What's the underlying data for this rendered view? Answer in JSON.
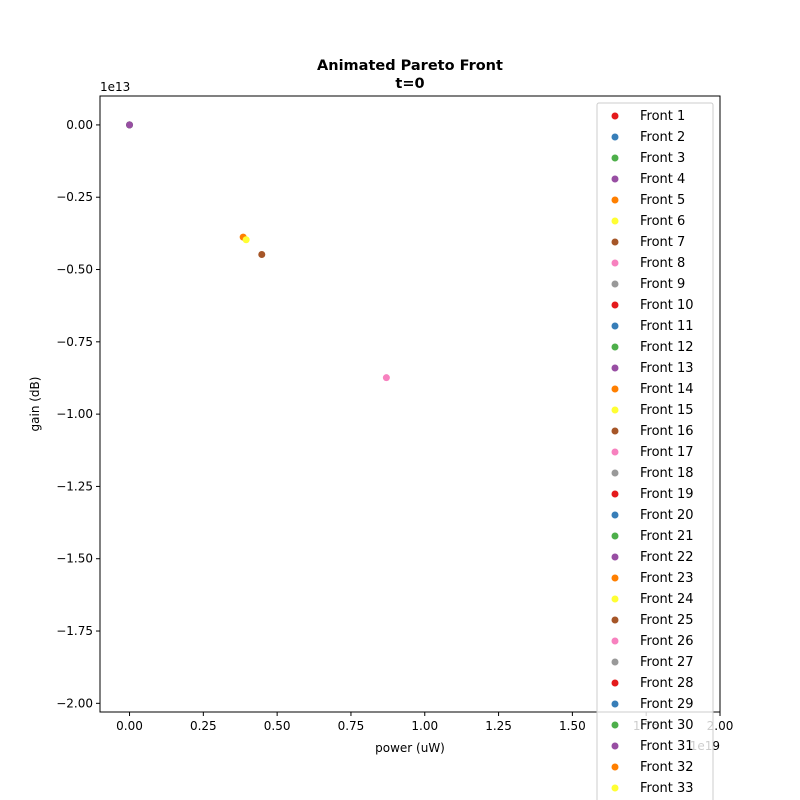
{
  "chart_data": {
    "type": "scatter",
    "title": "Animated Pareto Front",
    "subtitle": "t=0",
    "xlabel": "power (uW)",
    "ylabel": "gain (dB)",
    "x_offset_label": "1e19",
    "y_offset_label": "1e13",
    "xlim": [
      -0.1,
      2.0
    ],
    "ylim": [
      -2.03,
      0.1
    ],
    "x_ticks": [
      0.0,
      0.25,
      0.5,
      0.75,
      1.0,
      1.25,
      1.5,
      1.75,
      2.0
    ],
    "x_tick_labels": [
      "0.00",
      "0.25",
      "0.50",
      "0.75",
      "1.00",
      "1.25",
      "1.50",
      "1.75",
      "2.00"
    ],
    "y_ticks": [
      0.0,
      -0.25,
      -0.5,
      -0.75,
      -1.0,
      -1.25,
      -1.5,
      -1.75,
      -2.0
    ],
    "y_tick_labels": [
      "0.00",
      "−0.25",
      "−0.50",
      "−0.75",
      "−1.00",
      "−1.25",
      "−1.50",
      "−1.75",
      "−2.00"
    ],
    "grid": false,
    "legend_position": "top-right",
    "series": [
      {
        "name": "Front 1",
        "color": "#e41a1c",
        "points": [
          [
            0.0,
            0.0
          ]
        ]
      },
      {
        "name": "Front 2",
        "color": "#377eb8",
        "points": [
          [
            0.0,
            0.0
          ]
        ]
      },
      {
        "name": "Front 3",
        "color": "#4daf4a",
        "points": [
          [
            0.0,
            0.0
          ]
        ]
      },
      {
        "name": "Front 4",
        "color": "#984ea3",
        "points": [
          [
            0.0,
            0.0
          ]
        ]
      },
      {
        "name": "Front 5",
        "color": "#ff7f00",
        "points": [
          [
            0.385,
            -0.388
          ]
        ]
      },
      {
        "name": "Front 6",
        "color": "#ffff33",
        "points": [
          [
            0.395,
            -0.397
          ]
        ]
      },
      {
        "name": "Front 7",
        "color": "#a65628",
        "points": [
          [
            0.448,
            -0.448
          ]
        ]
      },
      {
        "name": "Front 8",
        "color": "#f781bf",
        "points": [
          [
            0.87,
            -0.874
          ]
        ]
      },
      {
        "name": "Front 9",
        "color": "#999999",
        "points": []
      },
      {
        "name": "Front 10",
        "color": "#e41a1c",
        "points": []
      },
      {
        "name": "Front 11",
        "color": "#377eb8",
        "points": []
      },
      {
        "name": "Front 12",
        "color": "#4daf4a",
        "points": []
      },
      {
        "name": "Front 13",
        "color": "#984ea3",
        "points": []
      },
      {
        "name": "Front 14",
        "color": "#ff7f00",
        "points": []
      },
      {
        "name": "Front 15",
        "color": "#ffff33",
        "points": []
      },
      {
        "name": "Front 16",
        "color": "#a65628",
        "points": []
      },
      {
        "name": "Front 17",
        "color": "#f781bf",
        "points": []
      },
      {
        "name": "Front 18",
        "color": "#999999",
        "points": []
      },
      {
        "name": "Front 19",
        "color": "#e41a1c",
        "points": []
      },
      {
        "name": "Front 20",
        "color": "#377eb8",
        "points": []
      },
      {
        "name": "Front 21",
        "color": "#4daf4a",
        "points": []
      },
      {
        "name": "Front 22",
        "color": "#984ea3",
        "points": []
      },
      {
        "name": "Front 23",
        "color": "#ff7f00",
        "points": []
      },
      {
        "name": "Front 24",
        "color": "#ffff33",
        "points": []
      },
      {
        "name": "Front 25",
        "color": "#a65628",
        "points": []
      },
      {
        "name": "Front 26",
        "color": "#f781bf",
        "points": []
      },
      {
        "name": "Front 27",
        "color": "#999999",
        "points": []
      },
      {
        "name": "Front 28",
        "color": "#e41a1c",
        "points": []
      },
      {
        "name": "Front 29",
        "color": "#377eb8",
        "points": []
      },
      {
        "name": "Front 30",
        "color": "#4daf4a",
        "points": []
      },
      {
        "name": "Front 31",
        "color": "#984ea3",
        "points": []
      },
      {
        "name": "Front 32",
        "color": "#ff7f00",
        "points": []
      },
      {
        "name": "Front 33",
        "color": "#ffff33",
        "points": []
      }
    ]
  }
}
